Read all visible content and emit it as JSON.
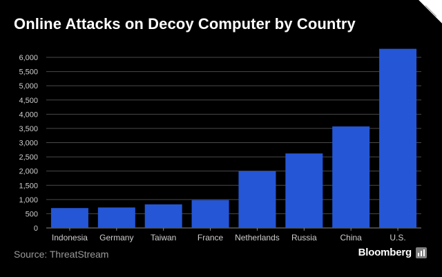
{
  "header": {
    "title": "Online Attacks on Decoy Computer by Country"
  },
  "footer": {
    "source": "Source: ThreatStream",
    "brand": "Bloomberg"
  },
  "colors": {
    "background": "#000000",
    "bar": "#2456d6",
    "gridline": "#4a4a4a",
    "text": "#ffffff",
    "tick_text": "#cfcfcf"
  },
  "chart_data": {
    "type": "bar",
    "title": "Online Attacks on Decoy Computer by Country",
    "xlabel": "",
    "ylabel": "",
    "categories": [
      "Indonesia",
      "Germany",
      "Taiwan",
      "France",
      "Netherlands",
      "Russia",
      "China",
      "U.S."
    ],
    "values": [
      700,
      720,
      830,
      980,
      2000,
      2620,
      3570,
      6300
    ],
    "ylim": [
      0,
      6000
    ],
    "yticks": [
      0,
      500,
      1000,
      1500,
      2000,
      2500,
      3000,
      3500,
      4000,
      4500,
      5000,
      5500,
      6000
    ],
    "ytick_labels": [
      "0",
      "500",
      "1,000",
      "1,500",
      "2,000",
      "2,500",
      "3,000",
      "3,500",
      "4,000",
      "4,500",
      "5,000",
      "5,500",
      "6,000"
    ],
    "grid": true,
    "legend": "none"
  }
}
